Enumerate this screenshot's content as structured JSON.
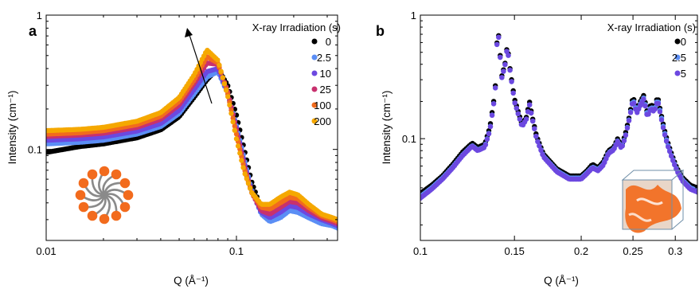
{
  "chart_data": [
    {
      "panel_label": "a",
      "type": "scatter",
      "xlabel": "Q (Å⁻¹)",
      "ylabel": "Intensity (cm⁻¹)",
      "xscale": "log",
      "yscale": "log",
      "xlim": [
        0.01,
        0.34
      ],
      "ylim": [
        0.021,
        1.0
      ],
      "x_ticks": [
        {
          "value": 0.01,
          "label": "0.01"
        },
        {
          "value": 0.1,
          "label": "0.1"
        }
      ],
      "y_ticks": [
        {
          "value": 0.1,
          "label": "0.1"
        },
        {
          "value": 1,
          "label": "1"
        }
      ],
      "legend_title": "X-ray Irradiation (s)",
      "legend_placement": "top-right",
      "annotation": "arrow indicating increasing irradiation time",
      "inset": "micelle-schematic",
      "series": [
        {
          "name": "0",
          "color": "#000000",
          "x": [
            0.01,
            0.015,
            0.02,
            0.03,
            0.04,
            0.05,
            0.06,
            0.07,
            0.08,
            0.09,
            0.1,
            0.11,
            0.12,
            0.135,
            0.15,
            0.17,
            0.19,
            0.21,
            0.24,
            0.28,
            0.32,
            0.34
          ],
          "y": [
            0.095,
            0.105,
            0.11,
            0.122,
            0.14,
            0.175,
            0.245,
            0.33,
            0.4,
            0.3,
            0.18,
            0.1,
            0.058,
            0.036,
            0.031,
            0.034,
            0.038,
            0.037,
            0.033,
            0.03,
            0.029,
            0.028
          ]
        },
        {
          "name": "2.5",
          "color": "#5b8ef5",
          "x": [
            0.01,
            0.015,
            0.02,
            0.03,
            0.04,
            0.05,
            0.06,
            0.07,
            0.08,
            0.09,
            0.1,
            0.11,
            0.12,
            0.135,
            0.15,
            0.17,
            0.19,
            0.21,
            0.24,
            0.28,
            0.32,
            0.34
          ],
          "y": [
            0.11,
            0.113,
            0.117,
            0.13,
            0.148,
            0.185,
            0.26,
            0.345,
            0.38,
            0.26,
            0.15,
            0.085,
            0.05,
            0.033,
            0.029,
            0.031,
            0.035,
            0.034,
            0.031,
            0.028,
            0.027,
            0.026
          ]
        },
        {
          "name": "10",
          "color": "#6c48e0",
          "x": [
            0.01,
            0.015,
            0.02,
            0.03,
            0.04,
            0.05,
            0.06,
            0.07,
            0.08,
            0.09,
            0.1,
            0.11,
            0.12,
            0.135,
            0.15,
            0.17,
            0.19,
            0.21,
            0.24,
            0.28,
            0.32,
            0.34
          ],
          "y": [
            0.117,
            0.12,
            0.124,
            0.137,
            0.156,
            0.196,
            0.28,
            0.38,
            0.4,
            0.26,
            0.145,
            0.08,
            0.049,
            0.034,
            0.031,
            0.034,
            0.038,
            0.037,
            0.033,
            0.03,
            0.028,
            0.027
          ]
        },
        {
          "name": "25",
          "color": "#c8316e",
          "x": [
            0.01,
            0.015,
            0.02,
            0.03,
            0.04,
            0.05,
            0.06,
            0.07,
            0.08,
            0.09,
            0.1,
            0.11,
            0.12,
            0.135,
            0.15,
            0.17,
            0.19,
            0.21,
            0.24,
            0.28,
            0.32,
            0.34
          ],
          "y": [
            0.125,
            0.128,
            0.132,
            0.146,
            0.168,
            0.215,
            0.31,
            0.44,
            0.43,
            0.27,
            0.14,
            0.076,
            0.048,
            0.035,
            0.033,
            0.037,
            0.041,
            0.04,
            0.035,
            0.031,
            0.029,
            0.028
          ]
        },
        {
          "name": "100",
          "color": "#f26b1d",
          "x": [
            0.01,
            0.015,
            0.02,
            0.03,
            0.04,
            0.05,
            0.06,
            0.07,
            0.08,
            0.09,
            0.1,
            0.11,
            0.12,
            0.135,
            0.15,
            0.17,
            0.19,
            0.21,
            0.24,
            0.28,
            0.32,
            0.34
          ],
          "y": [
            0.13,
            0.133,
            0.138,
            0.153,
            0.177,
            0.228,
            0.33,
            0.49,
            0.44,
            0.26,
            0.13,
            0.072,
            0.048,
            0.037,
            0.036,
            0.04,
            0.044,
            0.043,
            0.037,
            0.032,
            0.03,
            0.029
          ]
        },
        {
          "name": "200",
          "color": "#f5a800",
          "x": [
            0.01,
            0.015,
            0.02,
            0.03,
            0.04,
            0.05,
            0.06,
            0.07,
            0.08,
            0.09,
            0.1,
            0.11,
            0.12,
            0.135,
            0.15,
            0.17,
            0.19,
            0.21,
            0.24,
            0.28,
            0.32,
            0.34
          ],
          "y": [
            0.138,
            0.141,
            0.146,
            0.162,
            0.188,
            0.243,
            0.36,
            0.55,
            0.46,
            0.25,
            0.12,
            0.068,
            0.048,
            0.039,
            0.039,
            0.044,
            0.048,
            0.046,
            0.039,
            0.033,
            0.031,
            0.03
          ]
        }
      ]
    },
    {
      "panel_label": "b",
      "type": "scatter",
      "xlabel": "Q (Å⁻¹)",
      "ylabel": "Intensity (cm⁻¹)",
      "xscale": "log",
      "yscale": "log",
      "xlim": [
        0.1,
        0.33
      ],
      "ylim": [
        0.015,
        1.0
      ],
      "x_ticks": [
        {
          "value": 0.1,
          "label": "0.1"
        },
        {
          "value": 0.15,
          "label": "0.15"
        },
        {
          "value": 0.2,
          "label": "0.2"
        },
        {
          "value": 0.25,
          "label": "0.25"
        },
        {
          "value": 0.3,
          "label": "0.3"
        }
      ],
      "y_ticks": [
        {
          "value": 0.1,
          "label": "0.1"
        },
        {
          "value": 1,
          "label": "1"
        }
      ],
      "legend_title": "X-ray Irradiation (s)",
      "legend_placement": "top-right",
      "inset": "cubic-structure-schematic",
      "series": [
        {
          "name": "0",
          "color": "#000000",
          "x": [
            0.1,
            0.105,
            0.11,
            0.115,
            0.12,
            0.125,
            0.128,
            0.132,
            0.135,
            0.138,
            0.1395,
            0.1405,
            0.142,
            0.144,
            0.1455,
            0.147,
            0.15,
            0.155,
            0.158,
            0.16,
            0.162,
            0.165,
            0.17,
            0.18,
            0.19,
            0.2,
            0.205,
            0.21,
            0.215,
            0.22,
            0.225,
            0.23,
            0.234,
            0.238,
            0.242,
            0.246,
            0.25,
            0.254,
            0.258,
            0.262,
            0.266,
            0.27,
            0.274,
            0.278,
            0.282,
            0.286,
            0.29,
            0.296,
            0.302,
            0.31,
            0.32,
            0.33
          ],
          "y": [
            0.036,
            0.042,
            0.05,
            0.062,
            0.078,
            0.092,
            0.085,
            0.09,
            0.125,
            0.24,
            0.82,
            0.6,
            0.32,
            0.4,
            0.58,
            0.38,
            0.21,
            0.13,
            0.15,
            0.2,
            0.15,
            0.105,
            0.075,
            0.057,
            0.05,
            0.05,
            0.055,
            0.062,
            0.058,
            0.065,
            0.08,
            0.085,
            0.1,
            0.087,
            0.11,
            0.15,
            0.22,
            0.17,
            0.2,
            0.225,
            0.16,
            0.19,
            0.175,
            0.22,
            0.16,
            0.12,
            0.095,
            0.073,
            0.058,
            0.048,
            0.042,
            0.04
          ]
        },
        {
          "name": "2.5",
          "color": "#5b8ef5",
          "x": [
            0.1,
            0.105,
            0.11,
            0.115,
            0.12,
            0.125,
            0.128,
            0.132,
            0.135,
            0.138,
            0.1395,
            0.1405,
            0.142,
            0.144,
            0.1455,
            0.147,
            0.15,
            0.155,
            0.158,
            0.16,
            0.162,
            0.165,
            0.17,
            0.18,
            0.19,
            0.2,
            0.205,
            0.21,
            0.215,
            0.22,
            0.225,
            0.23,
            0.234,
            0.238,
            0.242,
            0.246,
            0.25,
            0.254,
            0.258,
            0.262,
            0.266,
            0.27,
            0.274,
            0.278,
            0.282,
            0.286,
            0.29,
            0.296,
            0.302,
            0.31,
            0.32,
            0.33
          ],
          "y": [
            0.034,
            0.04,
            0.048,
            0.059,
            0.074,
            0.088,
            0.081,
            0.086,
            0.119,
            0.23,
            0.8,
            0.58,
            0.31,
            0.39,
            0.56,
            0.37,
            0.2,
            0.125,
            0.145,
            0.19,
            0.145,
            0.1,
            0.072,
            0.055,
            0.048,
            0.048,
            0.053,
            0.059,
            0.056,
            0.062,
            0.077,
            0.082,
            0.096,
            0.084,
            0.105,
            0.145,
            0.21,
            0.165,
            0.19,
            0.215,
            0.155,
            0.18,
            0.17,
            0.21,
            0.155,
            0.115,
            0.091,
            0.07,
            0.056,
            0.046,
            0.04,
            0.038
          ]
        },
        {
          "name": "5",
          "color": "#6c48e0",
          "x": [
            0.1,
            0.105,
            0.11,
            0.115,
            0.12,
            0.125,
            0.128,
            0.132,
            0.135,
            0.138,
            0.1395,
            0.1405,
            0.142,
            0.144,
            0.1455,
            0.147,
            0.15,
            0.155,
            0.158,
            0.16,
            0.162,
            0.165,
            0.17,
            0.18,
            0.19,
            0.2,
            0.205,
            0.21,
            0.215,
            0.22,
            0.225,
            0.23,
            0.234,
            0.238,
            0.242,
            0.246,
            0.25,
            0.254,
            0.258,
            0.262,
            0.266,
            0.27,
            0.274,
            0.278,
            0.282,
            0.286,
            0.29,
            0.296,
            0.302,
            0.31,
            0.32,
            0.33
          ],
          "y": [
            0.033,
            0.039,
            0.047,
            0.058,
            0.073,
            0.087,
            0.08,
            0.085,
            0.118,
            0.23,
            0.8,
            0.58,
            0.31,
            0.39,
            0.56,
            0.37,
            0.2,
            0.125,
            0.145,
            0.19,
            0.145,
            0.1,
            0.071,
            0.054,
            0.047,
            0.047,
            0.052,
            0.058,
            0.055,
            0.061,
            0.076,
            0.081,
            0.095,
            0.083,
            0.104,
            0.143,
            0.205,
            0.16,
            0.185,
            0.21,
            0.15,
            0.175,
            0.165,
            0.205,
            0.15,
            0.112,
            0.089,
            0.069,
            0.055,
            0.045,
            0.039,
            0.037
          ]
        }
      ]
    }
  ]
}
